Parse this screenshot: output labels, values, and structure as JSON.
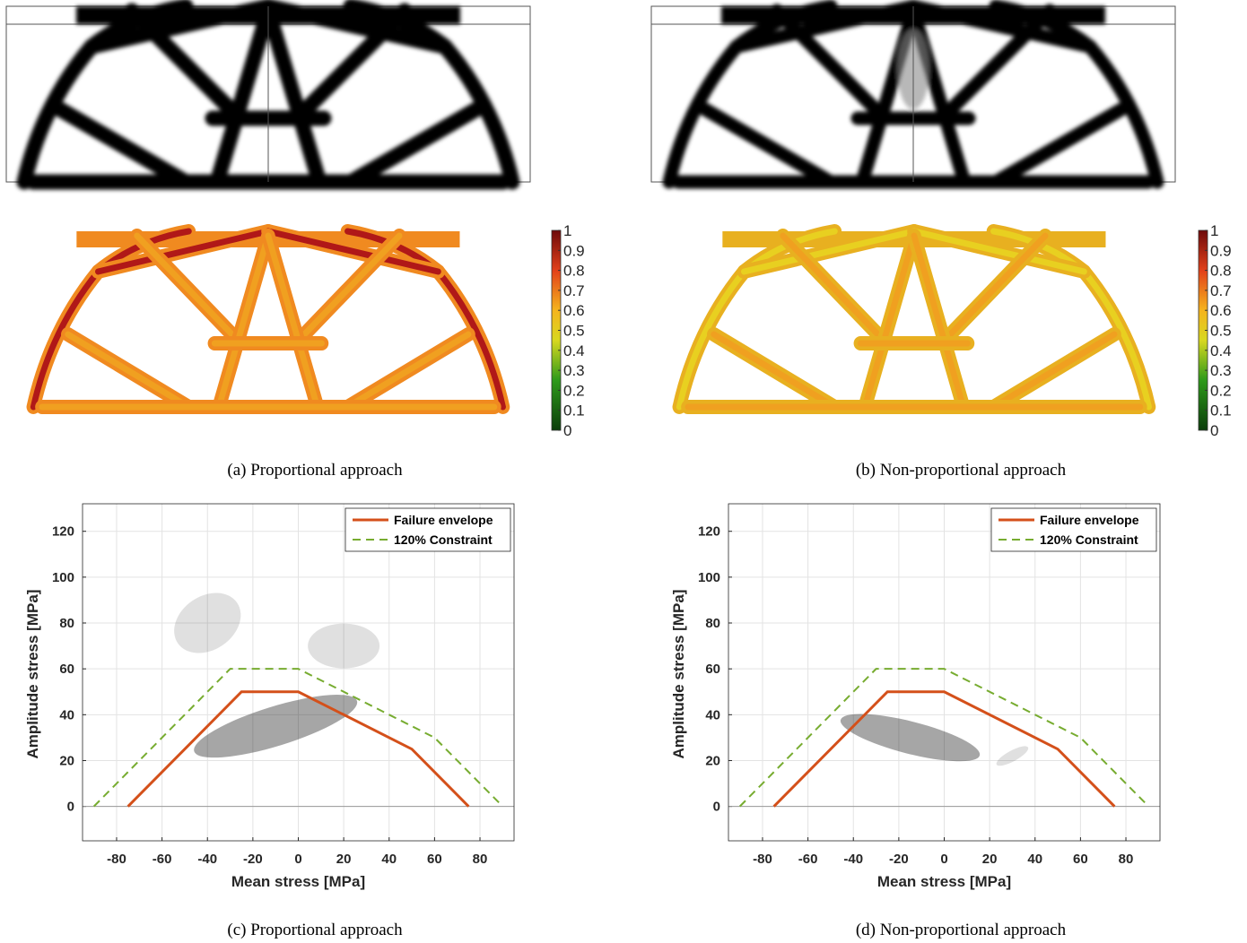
{
  "captions": [
    "(a) Proportional approach",
    "(b) Non-proportional approach",
    "(c) Proportional approach",
    "(d) Non-proportional approach"
  ],
  "colorbars": [
    {
      "ticks": [
        0,
        0.1,
        0.2,
        0.3,
        0.4,
        0.5,
        0.6,
        0.7,
        0.8,
        0.9,
        1
      ]
    },
    {
      "ticks": [
        0,
        0.1,
        0.2,
        0.3,
        0.4,
        0.5,
        0.6,
        0.7,
        0.8,
        0.9,
        1
      ]
    }
  ],
  "chart_data": [
    {
      "type": "line",
      "xlabel": "Mean stress [MPa]",
      "ylabel": "Amplitude stress [MPa]",
      "xlim": [
        -95,
        95
      ],
      "ylim": [
        -15,
        132
      ],
      "xticks": [
        -80,
        -60,
        -40,
        -20,
        0,
        20,
        40,
        60,
        80
      ],
      "yticks": [
        0,
        20,
        40,
        60,
        80,
        100,
        120
      ],
      "grid": true,
      "legend": "upper right",
      "series": [
        {
          "name": "Failure envelope",
          "color": "#d4501a",
          "linestyle": "solid",
          "x": [
            -75,
            -25,
            0,
            50,
            75
          ],
          "values": [
            0,
            50,
            50,
            25,
            0
          ]
        },
        {
          "name": "120% Constraint",
          "color": "#77ac30",
          "linestyle": "dashed",
          "x": [
            -90,
            -30,
            0,
            60,
            90
          ],
          "values": [
            0,
            60,
            60,
            30,
            0
          ]
        }
      ]
    },
    {
      "type": "line",
      "xlabel": "Mean stress [MPa]",
      "ylabel": "Amplitude stress [MPa]",
      "xlim": [
        -95,
        95
      ],
      "ylim": [
        -15,
        132
      ],
      "xticks": [
        -80,
        -60,
        -40,
        -20,
        0,
        20,
        40,
        60,
        80
      ],
      "yticks": [
        0,
        20,
        40,
        60,
        80,
        100,
        120
      ],
      "grid": true,
      "legend": "upper right",
      "series": [
        {
          "name": "Failure envelope",
          "color": "#d4501a",
          "linestyle": "solid",
          "x": [
            -75,
            -25,
            0,
            50,
            75
          ],
          "values": [
            0,
            50,
            50,
            25,
            0
          ]
        },
        {
          "name": "120% Constraint",
          "color": "#77ac30",
          "linestyle": "dashed",
          "x": [
            -90,
            -30,
            0,
            60,
            90
          ],
          "values": [
            0,
            60,
            60,
            30,
            0
          ]
        }
      ]
    }
  ]
}
